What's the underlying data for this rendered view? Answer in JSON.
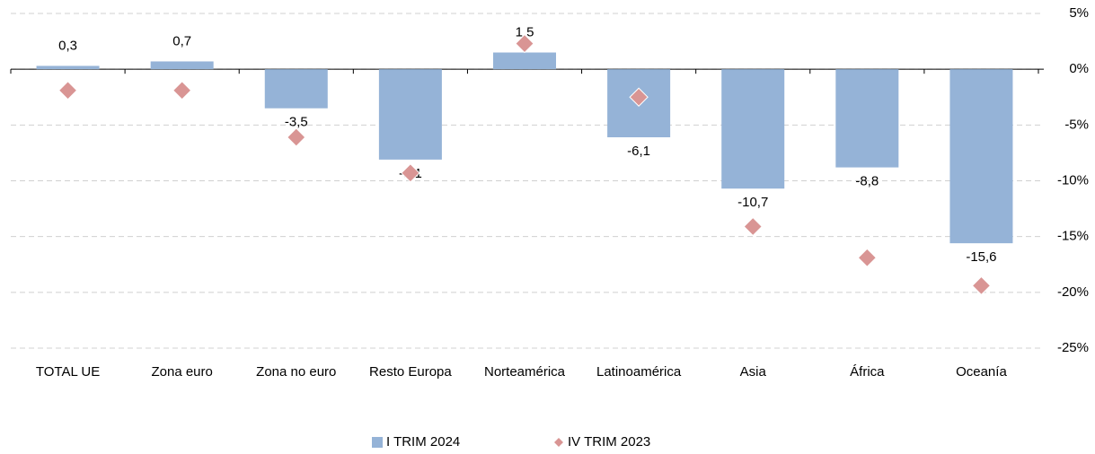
{
  "chart_data": {
    "type": "bar",
    "categories": [
      "TOTAL UE",
      "Zona euro",
      "Zona no euro",
      "Resto Europa",
      "Norteamérica",
      "Latinoamérica",
      "Asia",
      "África",
      "Oceanía"
    ],
    "series": [
      {
        "name": "I TRIM 2024",
        "type": "bar",
        "color": "#95b3d7",
        "values": [
          0.3,
          0.7,
          -3.5,
          -8.1,
          1.5,
          -6.1,
          -10.7,
          -8.8,
          -15.6
        ],
        "value_labels": [
          "0,3",
          "0,7",
          "-3,5",
          "-8,1",
          "1,5",
          "-6,1",
          "-10,7",
          "-8,8",
          "-15,6"
        ]
      },
      {
        "name": "IV TRIM 2023",
        "type": "scatter",
        "marker": "diamond",
        "color": "#d99594",
        "values": [
          -1.9,
          -1.9,
          -6.1,
          -9.3,
          2.3,
          -2.5,
          -14.1,
          -16.9,
          -19.4
        ]
      }
    ],
    "ylim": [
      5,
      -25
    ],
    "yticks": [
      {
        "value": 5,
        "label": "5%"
      },
      {
        "value": 0,
        "label": "0%"
      },
      {
        "value": -5,
        "label": "-5%"
      },
      {
        "value": -10,
        "label": "-10%"
      },
      {
        "value": -15,
        "label": "-15%"
      },
      {
        "value": -20,
        "label": "-20%"
      },
      {
        "value": -25,
        "label": "-25%"
      }
    ],
    "grid": true,
    "legend": "bottom"
  }
}
